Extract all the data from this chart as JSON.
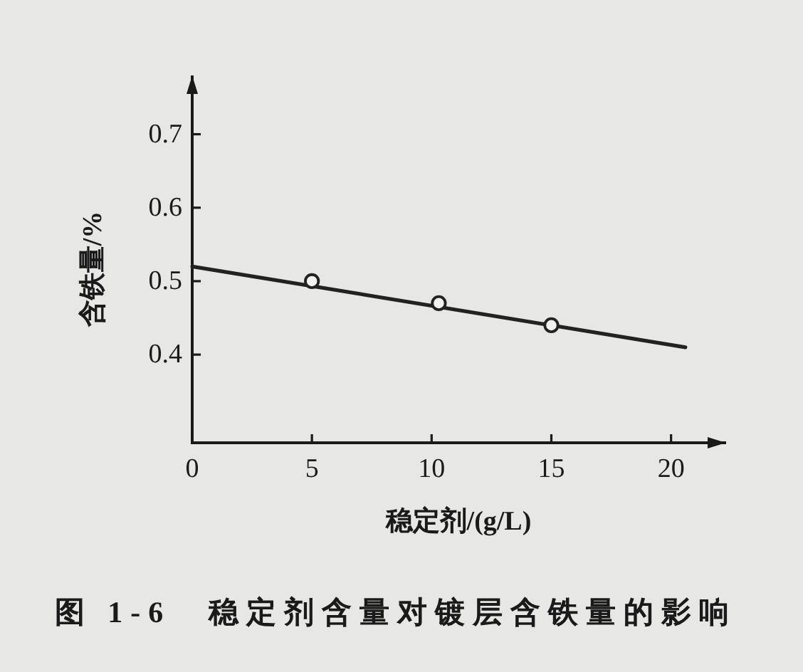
{
  "chart_data": {
    "type": "line",
    "title": "图 1-6　稳定剂含量对镀层含铁量的影响",
    "xlabel": "稳定剂/(g/L)",
    "ylabel": "含铁量/%",
    "series": [
      {
        "type": "line",
        "x": [
          0,
          20.6
        ],
        "values": [
          0.52,
          0.41
        ],
        "color": "#222222",
        "marker": "none"
      },
      {
        "type": "scatter",
        "x": [
          5,
          10.3,
          15
        ],
        "values": [
          0.5,
          0.47,
          0.44
        ],
        "color": "#222222",
        "marker": "circle"
      }
    ],
    "xlim": [
      0,
      22.3
    ],
    "xticks": [
      0,
      5,
      10,
      15,
      20
    ],
    "ylim": [
      0.28,
      0.78
    ],
    "yticks": [
      0.4,
      0.5,
      0.6,
      0.7
    ]
  }
}
